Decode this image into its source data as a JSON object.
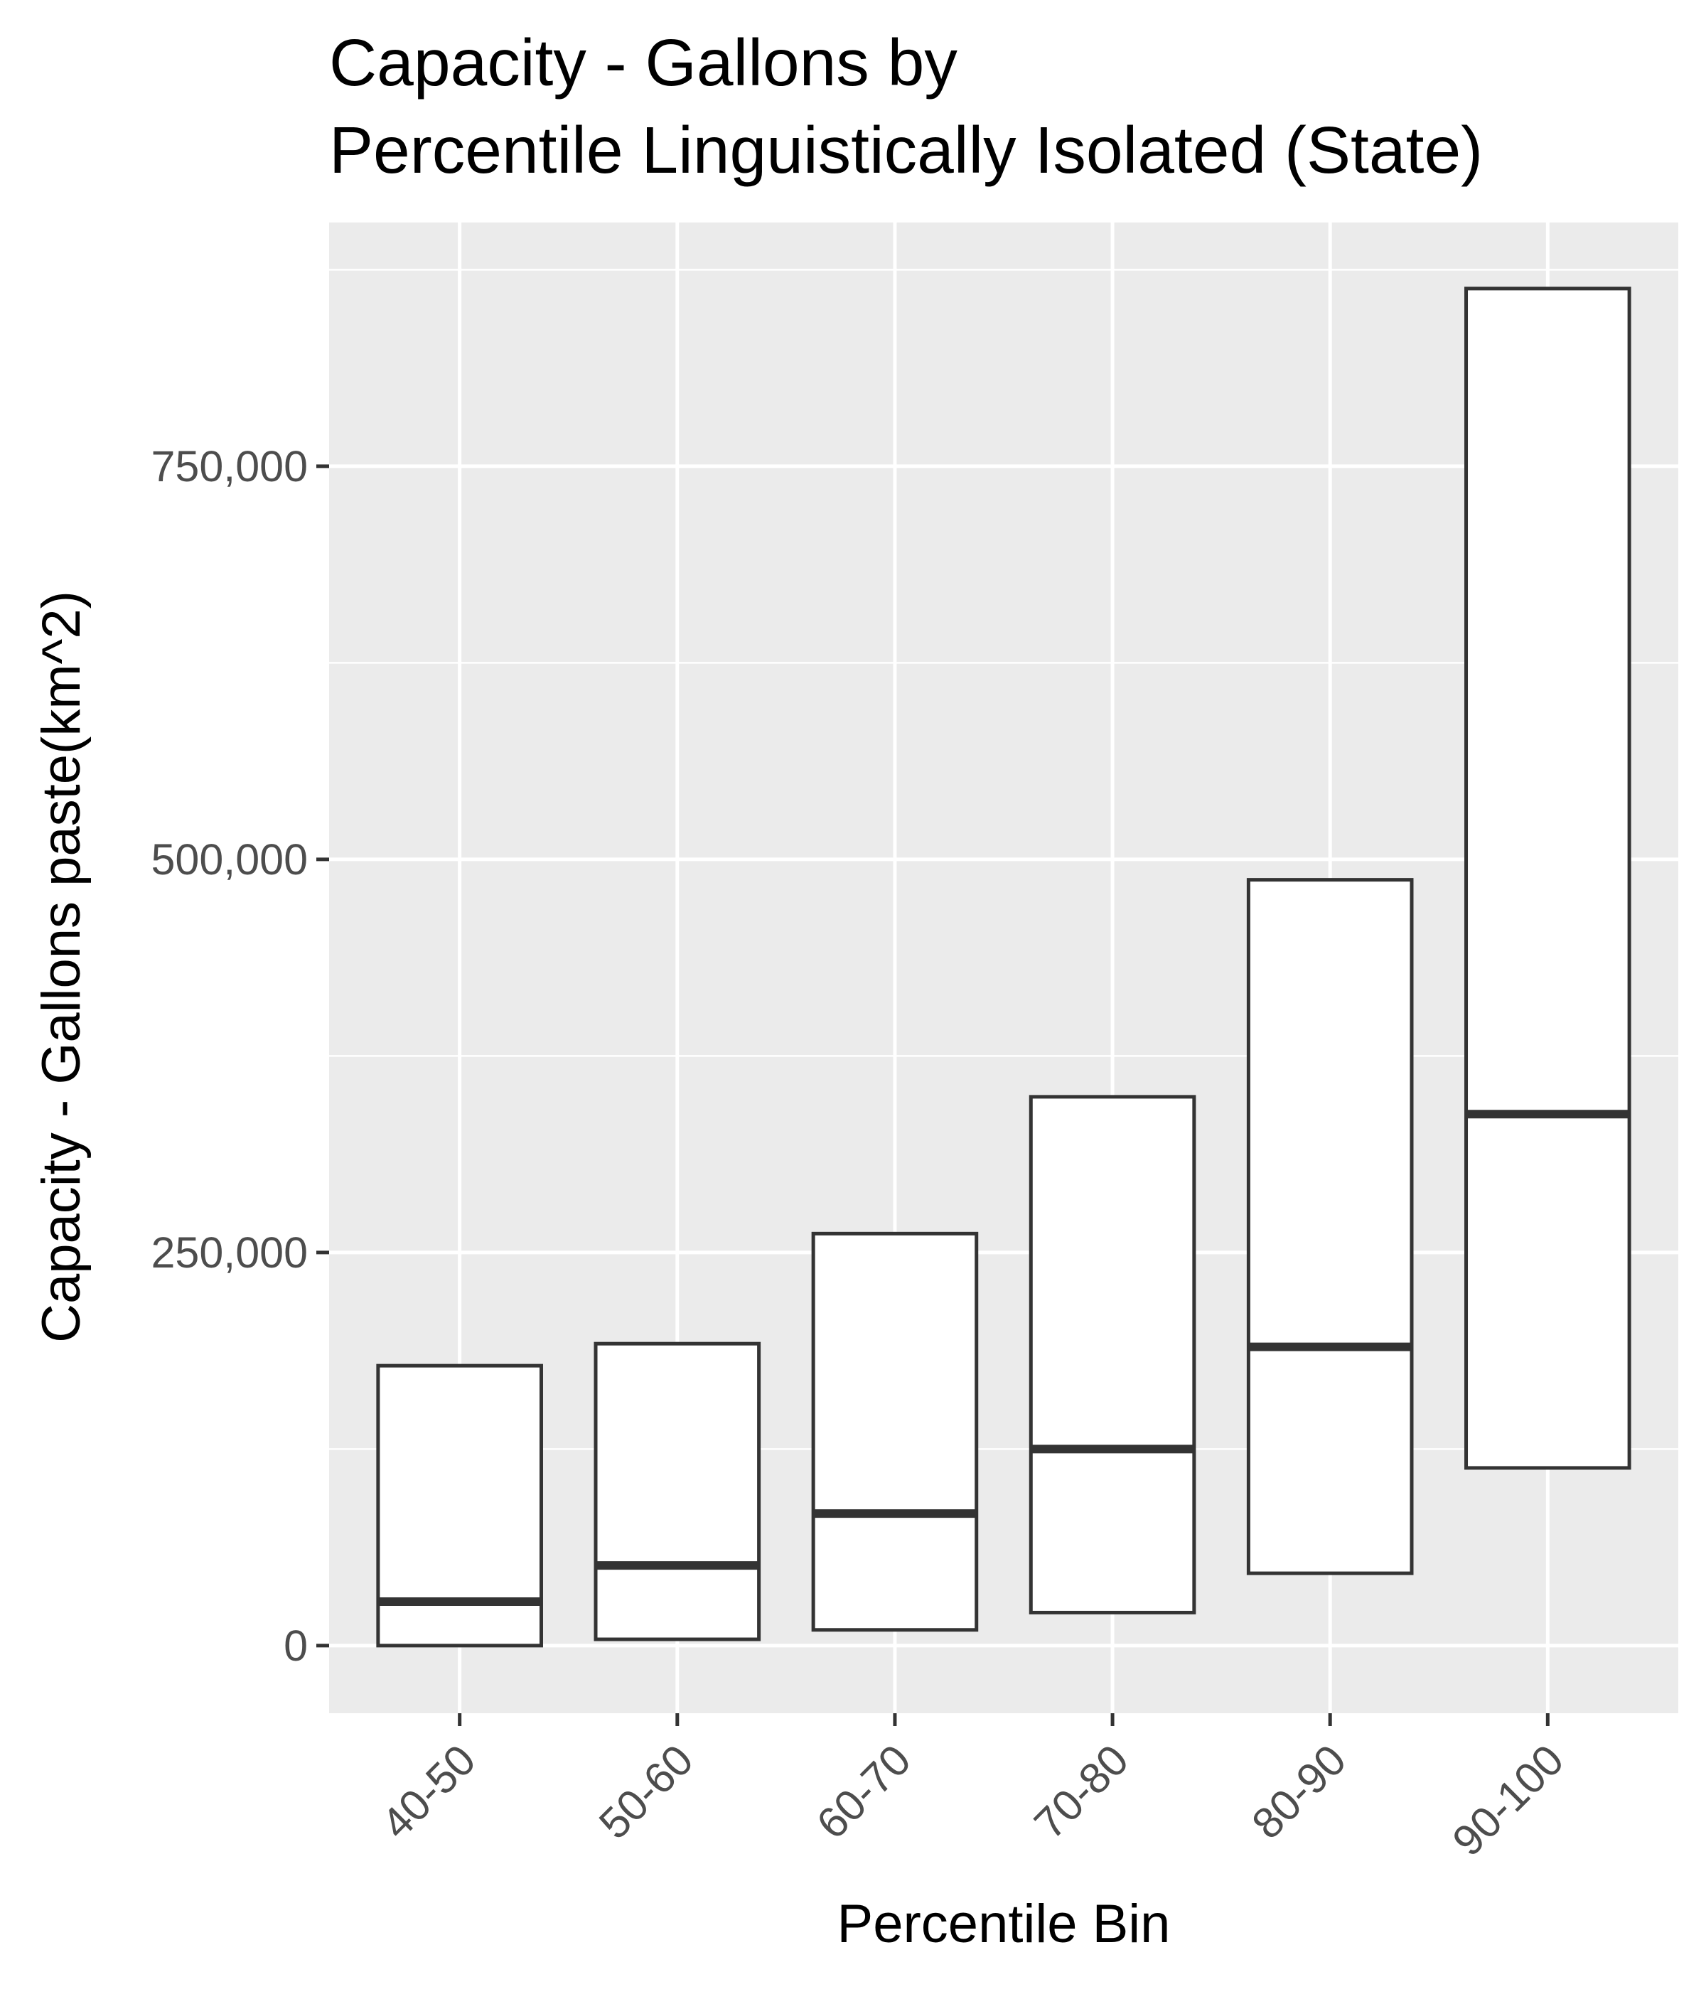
{
  "chart_data": {
    "type": "boxplot",
    "title": [
      "Capacity - Gallons by",
      "Percentile Linguistically Isolated (State)"
    ],
    "xlabel": "Percentile Bin",
    "ylabel": "Capacity - Gallons paste(km^2)",
    "categories": [
      "40-50",
      "50-60",
      "60-70",
      "70-80",
      "80-90",
      "90-100"
    ],
    "boxes": [
      {
        "category": "40-50",
        "q1": 0,
        "median": 28000,
        "q3": 178000
      },
      {
        "category": "50-60",
        "q1": 4000,
        "median": 51000,
        "q3": 192000
      },
      {
        "category": "60-70",
        "q1": 10000,
        "median": 84000,
        "q3": 262000
      },
      {
        "category": "70-80",
        "q1": 21000,
        "median": 125000,
        "q3": 349000
      },
      {
        "category": "80-90",
        "q1": 46000,
        "median": 190000,
        "q3": 487000
      },
      {
        "category": "90-100",
        "q1": 113000,
        "median": 338000,
        "q3": 863000
      }
    ],
    "yticks": [
      0,
      250000,
      500000,
      750000
    ],
    "ytick_labels": [
      "0",
      "250,000",
      "500,000",
      "750,000"
    ],
    "ylim": [
      -43000,
      905000
    ],
    "grid": true,
    "colors": {
      "panel": "#ebebeb",
      "grid": "#ffffff",
      "box_fill": "#ffffff",
      "box_stroke": "#333333",
      "tick": "#333333"
    }
  }
}
